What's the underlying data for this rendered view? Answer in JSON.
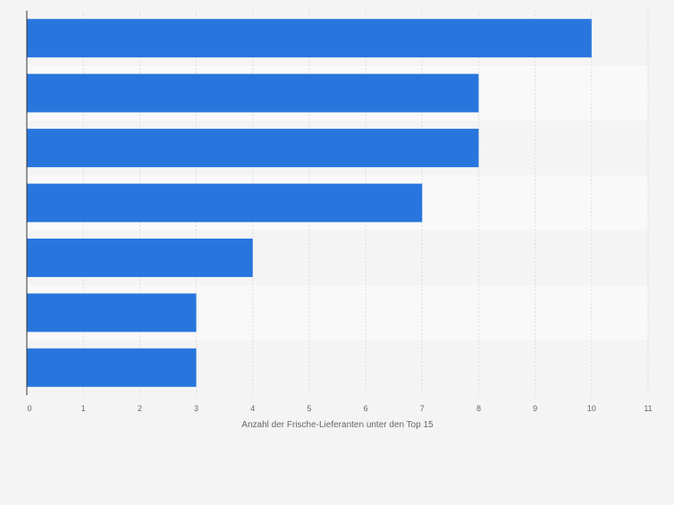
{
  "chart_data": {
    "type": "bar",
    "orientation": "horizontal",
    "categories": [
      "",
      "",
      "",
      "",
      "",
      "",
      ""
    ],
    "values": [
      10,
      8,
      8,
      7,
      4,
      3,
      3
    ],
    "title": "",
    "xlabel": "Anzahl der Frische-Lieferanten unter den Top 15",
    "ylabel": "",
    "xlim": [
      0,
      11
    ],
    "ticks": [
      "0",
      "1",
      "2",
      "3",
      "4",
      "5",
      "6",
      "7",
      "8",
      "9",
      "10",
      "11"
    ],
    "grid": true,
    "legend": "none"
  },
  "colors": {
    "bar": "#2876dd",
    "background": "#f4f4f4",
    "band_light": "#f9f9f9",
    "band_dark": "#f4f4f4",
    "grid": "#dddddd",
    "axis": "#333333",
    "tick_label": "#666666"
  }
}
